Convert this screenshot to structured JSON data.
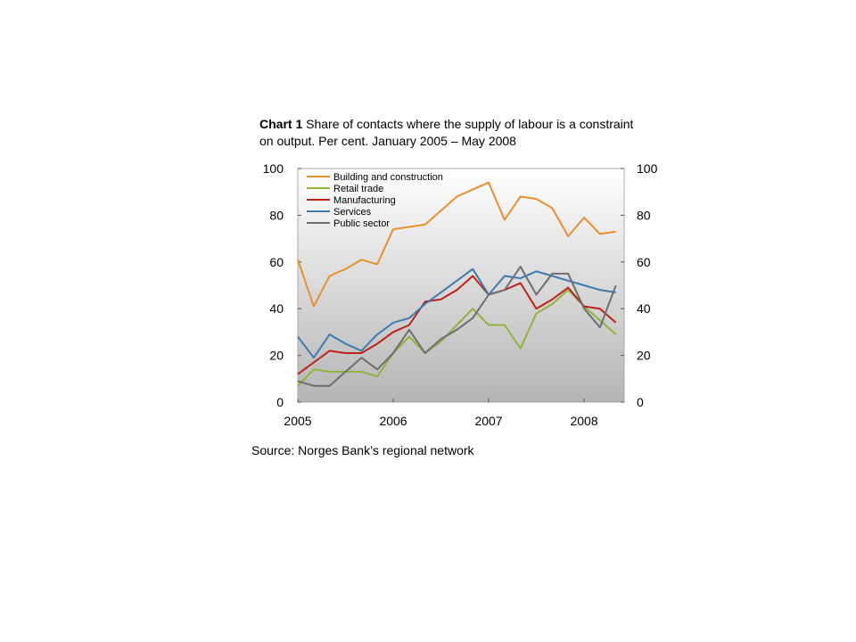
{
  "title": {
    "lead": "Chart 1",
    "text": " Share of contacts where the supply of labour is a constraint on output. Per cent. January 2005 – May 2008"
  },
  "source": "Source: Norges Bank’s regional network",
  "chart_data": {
    "type": "line",
    "title": "Chart 1 Share of contacts where the supply of labour is a constraint on output. Per cent. January 2005 – May 2008",
    "xlim": [
      2005,
      2008.42
    ],
    "ylim": [
      0,
      100
    ],
    "x_ticks": [
      "2005",
      "2006",
      "2007",
      "2008"
    ],
    "y_ticks": [
      "0",
      "20",
      "40",
      "60",
      "80",
      "100"
    ],
    "y_ticks_right": [
      "0",
      "20",
      "40",
      "60",
      "80",
      "100"
    ],
    "legend_position": "top-left",
    "grid": false,
    "background": "grey-gradient",
    "series": [
      {
        "name": "Building and construction",
        "color": "#E8912C",
        "x": [
          2005.0,
          2005.167,
          2005.333,
          2005.5,
          2005.667,
          2005.833,
          2006.0,
          2006.167,
          2006.333,
          2006.5,
          2006.667,
          2006.833,
          2007.0,
          2007.167,
          2007.333,
          2007.5,
          2007.667,
          2007.833,
          2008.0,
          2008.167,
          2008.333
        ],
        "values": [
          61,
          41,
          54,
          57,
          61,
          59,
          74,
          75,
          76,
          82,
          88,
          91,
          94,
          78,
          88,
          87,
          83,
          71,
          79,
          72,
          73
        ]
      },
      {
        "name": "Retail trade",
        "color": "#8DB53C",
        "x": [
          2005.0,
          2005.167,
          2005.333,
          2005.5,
          2005.667,
          2005.833,
          2006.0,
          2006.167,
          2006.333,
          2006.5,
          2006.667,
          2006.833,
          2007.0,
          2007.167,
          2007.333,
          2007.5,
          2007.667,
          2007.833,
          2008.0,
          2008.167,
          2008.333
        ],
        "values": [
          7,
          14,
          13,
          13,
          13,
          11,
          21,
          28,
          21,
          26,
          33,
          40,
          33,
          33,
          23,
          38,
          42,
          48,
          41,
          35,
          29
        ]
      },
      {
        "name": "Manufacturing",
        "color": "#C0201A",
        "x": [
          2005.0,
          2005.167,
          2005.333,
          2005.5,
          2005.667,
          2005.833,
          2006.0,
          2006.167,
          2006.333,
          2006.5,
          2006.667,
          2006.833,
          2007.0,
          2007.167,
          2007.333,
          2007.5,
          2007.667,
          2007.833,
          2008.0,
          2008.167,
          2008.333
        ],
        "values": [
          12,
          17,
          22,
          21,
          21,
          25,
          30,
          33,
          43,
          44,
          48,
          54,
          46,
          48,
          51,
          40,
          44,
          49,
          41,
          40,
          34
        ]
      },
      {
        "name": "Services",
        "color": "#3B7BB0",
        "x": [
          2005.0,
          2005.167,
          2005.333,
          2005.5,
          2005.667,
          2005.833,
          2006.0,
          2006.167,
          2006.333,
          2006.5,
          2006.667,
          2006.833,
          2007.0,
          2007.167,
          2007.333,
          2007.5,
          2007.667,
          2007.833,
          2008.0,
          2008.167,
          2008.333
        ],
        "values": [
          28,
          19,
          29,
          25,
          22,
          29,
          34,
          36,
          42,
          47,
          52,
          57,
          46,
          54,
          53,
          56,
          54,
          52,
          50,
          48,
          47
        ]
      },
      {
        "name": "Public sector",
        "color": "#6E6E6E",
        "x": [
          2005.0,
          2005.167,
          2005.333,
          2005.5,
          2005.667,
          2005.833,
          2006.0,
          2006.167,
          2006.333,
          2006.5,
          2006.667,
          2006.833,
          2007.0,
          2007.167,
          2007.333,
          2007.5,
          2007.667,
          2007.833,
          2008.0,
          2008.167,
          2008.333
        ],
        "values": [
          9,
          7,
          7,
          13,
          19,
          14,
          21,
          31,
          21,
          27,
          31,
          36,
          46,
          48,
          58,
          46,
          55,
          55,
          40,
          32,
          50
        ]
      }
    ]
  }
}
